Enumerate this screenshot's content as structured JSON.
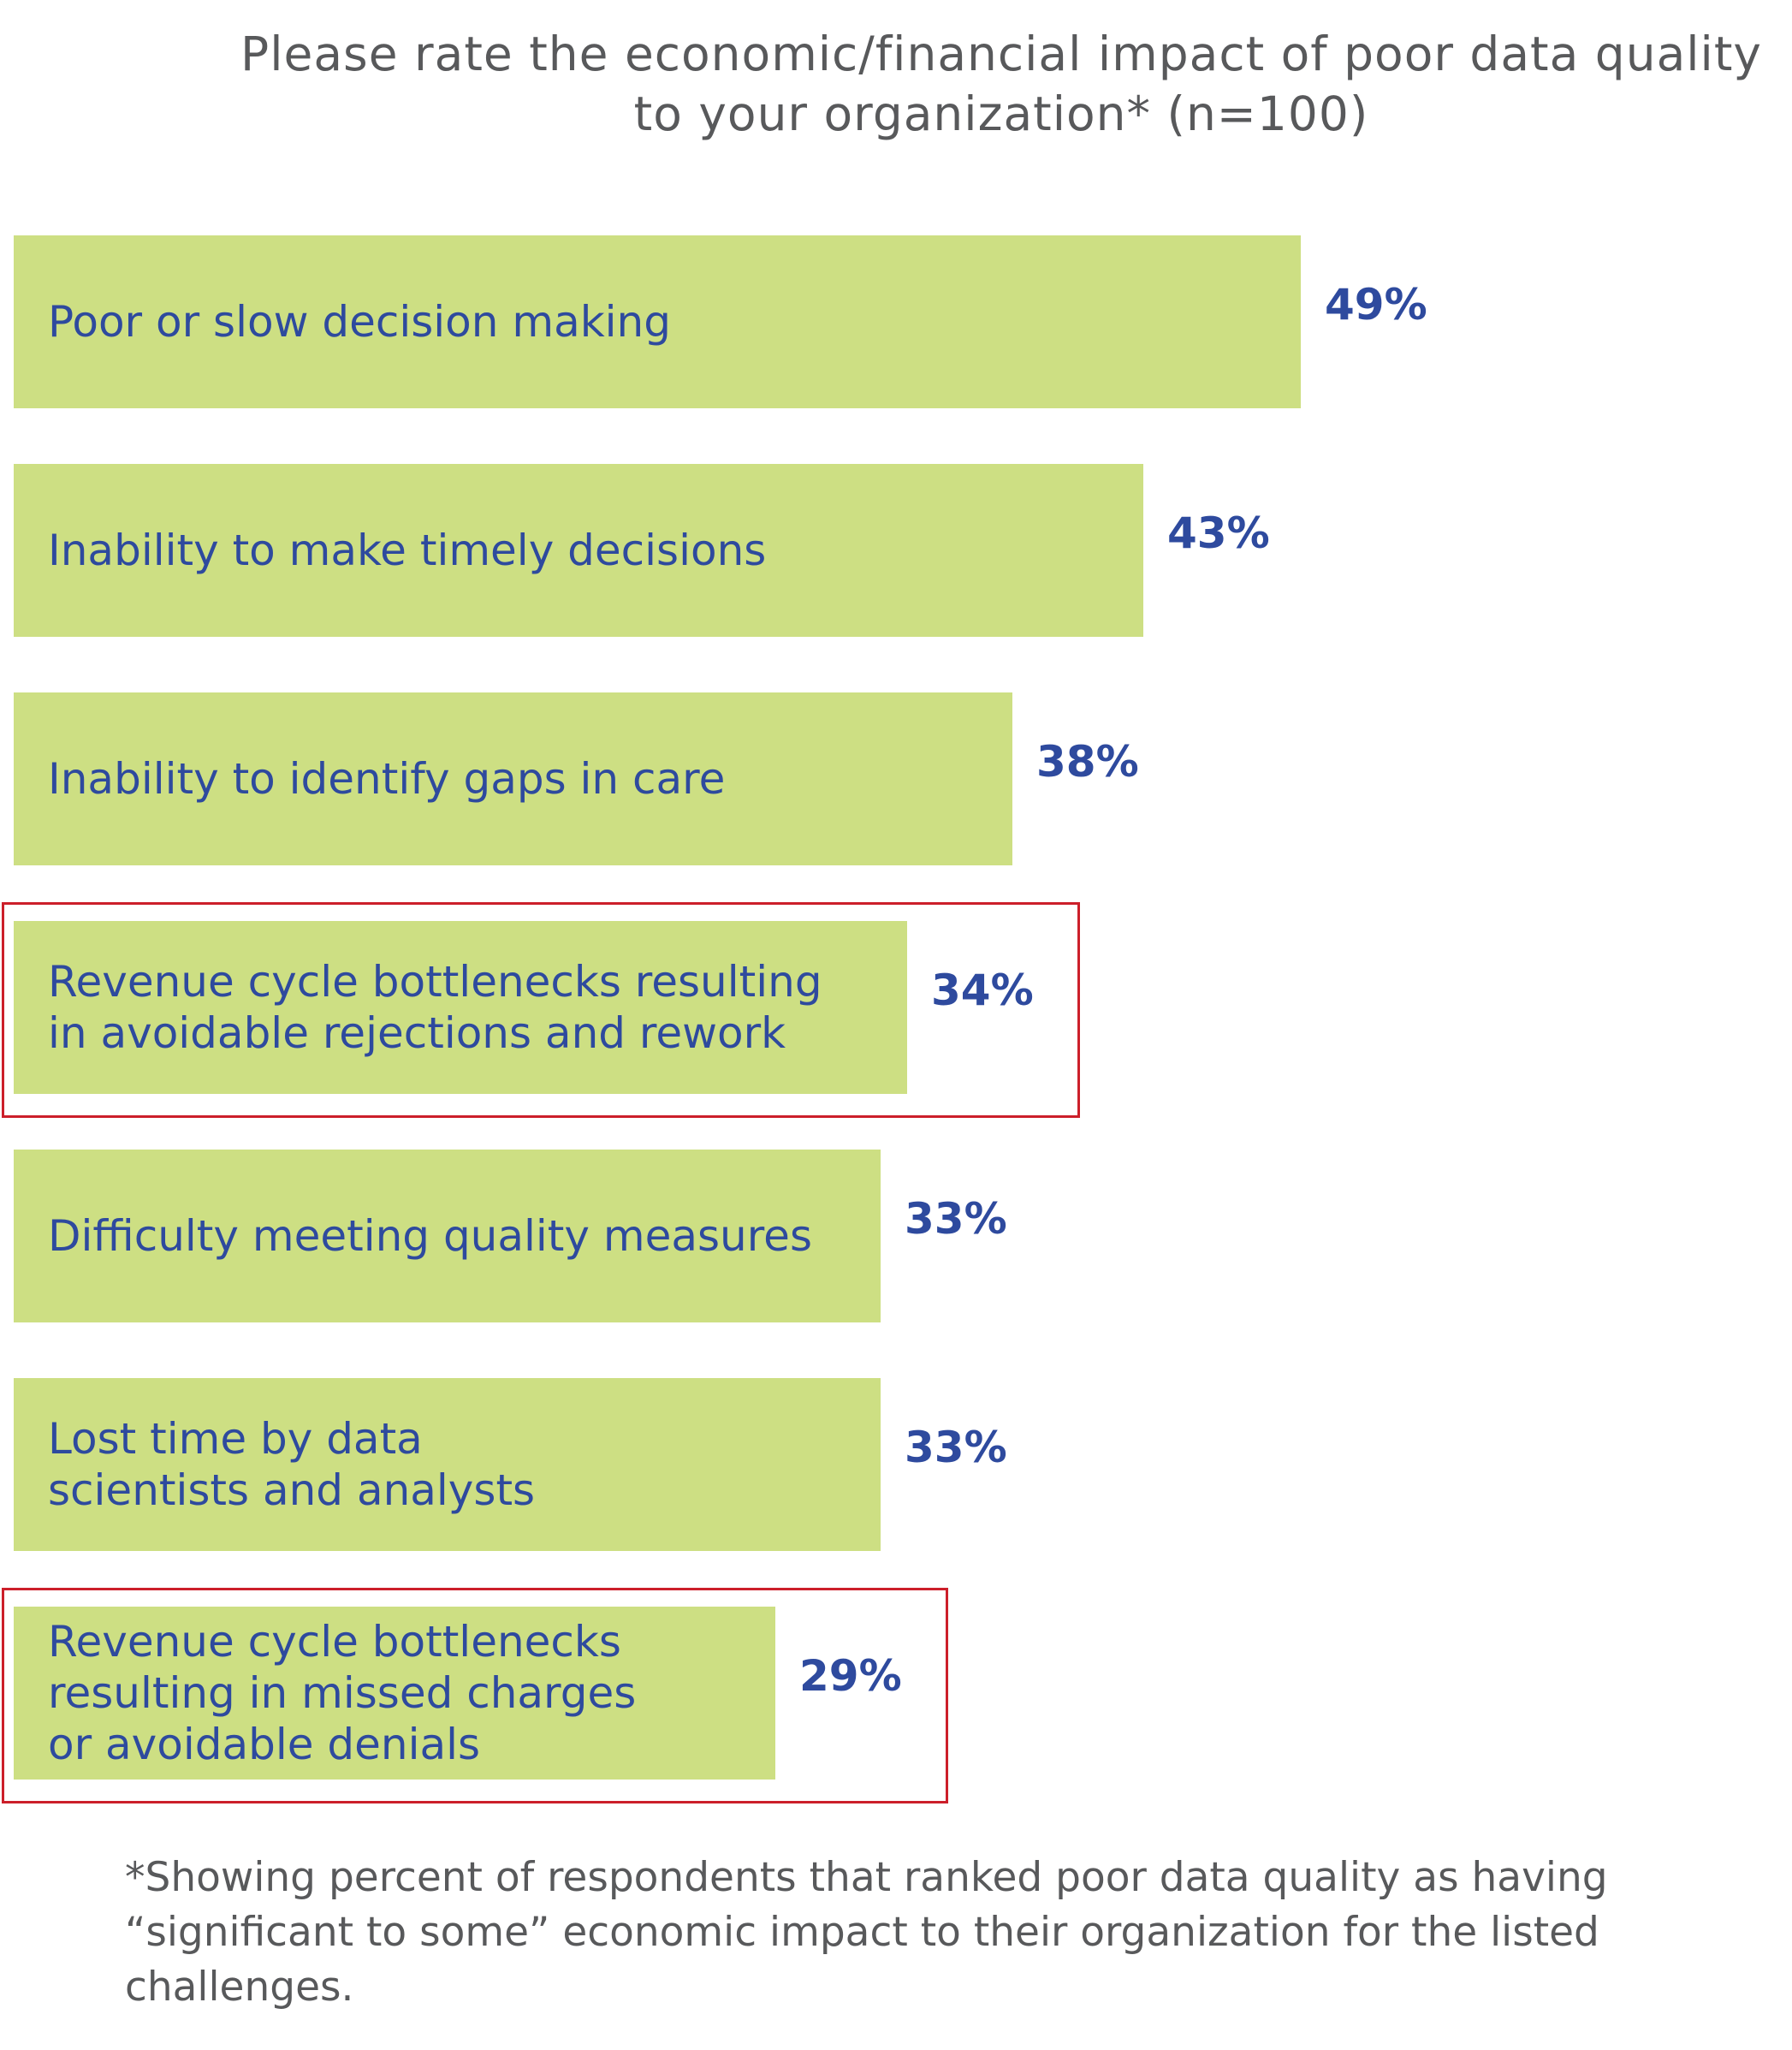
{
  "chart_data": {
    "type": "bar",
    "orientation": "horizontal",
    "title_lines": [
      "Please rate the economic/financial impact of poor data quality",
      "to your organization* (n=100)"
    ],
    "categories": [
      [
        "Poor or slow decision making"
      ],
      [
        "Inability to make timely decisions"
      ],
      [
        "Inability to identify gaps in care"
      ],
      [
        "Revenue cycle bottlenecks resulting",
        "in avoidable rejections and rework"
      ],
      [
        "Difficulty meeting quality measures"
      ],
      [
        "Lost time by data",
        "scientists and analysts"
      ],
      [
        "Revenue cycle bottlenecks",
        "resulting in missed charges",
        "or avoidable denials"
      ]
    ],
    "values": [
      49,
      43,
      38,
      34,
      33,
      33,
      29
    ],
    "value_labels": [
      "49%",
      "43%",
      "38%",
      "34%",
      "33%",
      "33%",
      "29%"
    ],
    "highlighted": [
      false,
      false,
      false,
      true,
      false,
      false,
      true
    ],
    "unit": "%",
    "bar_color": "#cddf83",
    "label_color": "#2e4a9e",
    "highlight_color": "#cc1f2a",
    "grid": false,
    "legend": "none",
    "footnote_lines": [
      "*Showing percent of respondents that ranked poor data quality as having",
      "“significant to some” economic impact to their organization for the listed",
      "challenges."
    ]
  }
}
